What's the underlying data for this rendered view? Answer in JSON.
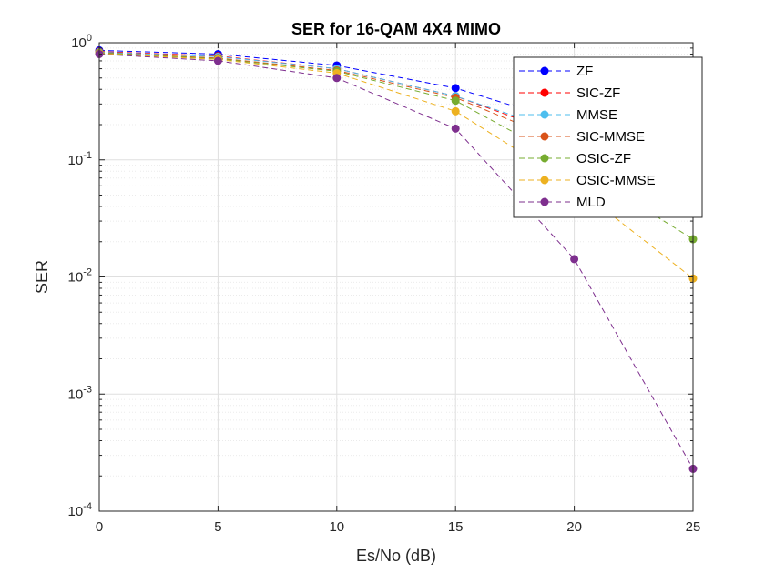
{
  "chart_data": {
    "type": "line",
    "title": "SER for 16-QAM 4X4 MIMO",
    "xlabel": "Es/No (dB)",
    "ylabel": "SER",
    "yscale": "log",
    "xlim": [
      0,
      25
    ],
    "ylim": [
      0.0001,
      1
    ],
    "x": [
      0,
      5,
      10,
      15,
      20,
      25
    ],
    "xticks": [
      "0",
      "5",
      "10",
      "15",
      "20",
      "25"
    ],
    "yticks": [
      {
        "base": "10",
        "exp": "-4",
        "value": 0.0001
      },
      {
        "base": "10",
        "exp": "-3",
        "value": 0.001
      },
      {
        "base": "10",
        "exp": "-2",
        "value": 0.01
      },
      {
        "base": "10",
        "exp": "-1",
        "value": 0.1
      },
      {
        "base": "10",
        "exp": "0",
        "value": 1
      }
    ],
    "grid": true,
    "legend_position": "top-right",
    "series": [
      {
        "name": "ZF",
        "color": "#0000ff",
        "values": [
          0.86,
          0.8,
          0.64,
          0.41,
          0.2,
          0.074
        ]
      },
      {
        "name": "SIC-ZF",
        "color": "#ff0000",
        "values": [
          0.84,
          0.77,
          0.6,
          0.35,
          0.15,
          0.048
        ]
      },
      {
        "name": "MMSE",
        "color": "#4dbeee",
        "values": [
          0.83,
          0.76,
          0.6,
          0.35,
          0.16,
          0.06
        ]
      },
      {
        "name": "SIC-MMSE",
        "color": "#d95319",
        "values": [
          0.82,
          0.74,
          0.58,
          0.34,
          0.13,
          0.04
        ]
      },
      {
        "name": "OSIC-ZF",
        "color": "#77ac30",
        "values": [
          0.82,
          0.73,
          0.57,
          0.32,
          0.09,
          0.021
        ]
      },
      {
        "name": "OSIC-MMSE",
        "color": "#edb120",
        "values": [
          0.81,
          0.72,
          0.55,
          0.26,
          0.06,
          0.0097
        ]
      },
      {
        "name": "MLD",
        "color": "#7e2f8e",
        "values": [
          0.8,
          0.7,
          0.5,
          0.185,
          0.0142,
          0.00023
        ]
      }
    ]
  }
}
